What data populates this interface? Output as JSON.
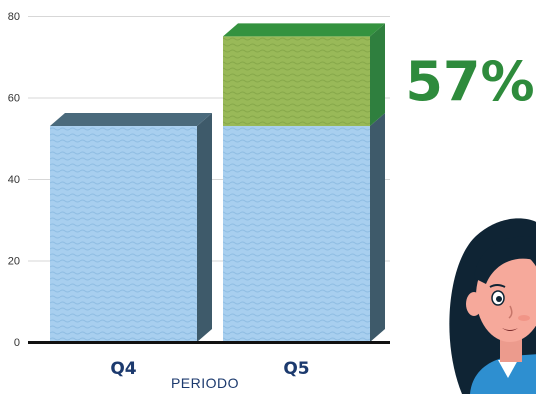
{
  "chart_data": {
    "type": "bar",
    "stacked": true,
    "style": "3d",
    "categories": [
      "Q4",
      "Q5"
    ],
    "series": [
      {
        "values": [
          53,
          53
        ]
      },
      {
        "values": [
          0,
          22
        ]
      }
    ],
    "xlabel": "PERIODO",
    "ylabel": "",
    "ylim": [
      0,
      80
    ],
    "yticks": [
      0,
      20,
      40,
      60,
      80
    ],
    "grid": true,
    "annotation": "57%"
  },
  "colors": {
    "base_front": "#a8cfef",
    "base_side": "#3e5a6a",
    "base_top": "#4a6a7c",
    "top_front": "#99b958",
    "top_side": "#2f7f3e",
    "top_top": "#34923f",
    "label": "#1c3a6e",
    "pct": "#2e8b3c",
    "grid": "#d7d7d7",
    "axis": "#111111",
    "skin": "#f6a99b",
    "hair": "#0f2434",
    "shirt": "#2e8fd0"
  },
  "illustration": {
    "icon": "woman-character-icon"
  }
}
